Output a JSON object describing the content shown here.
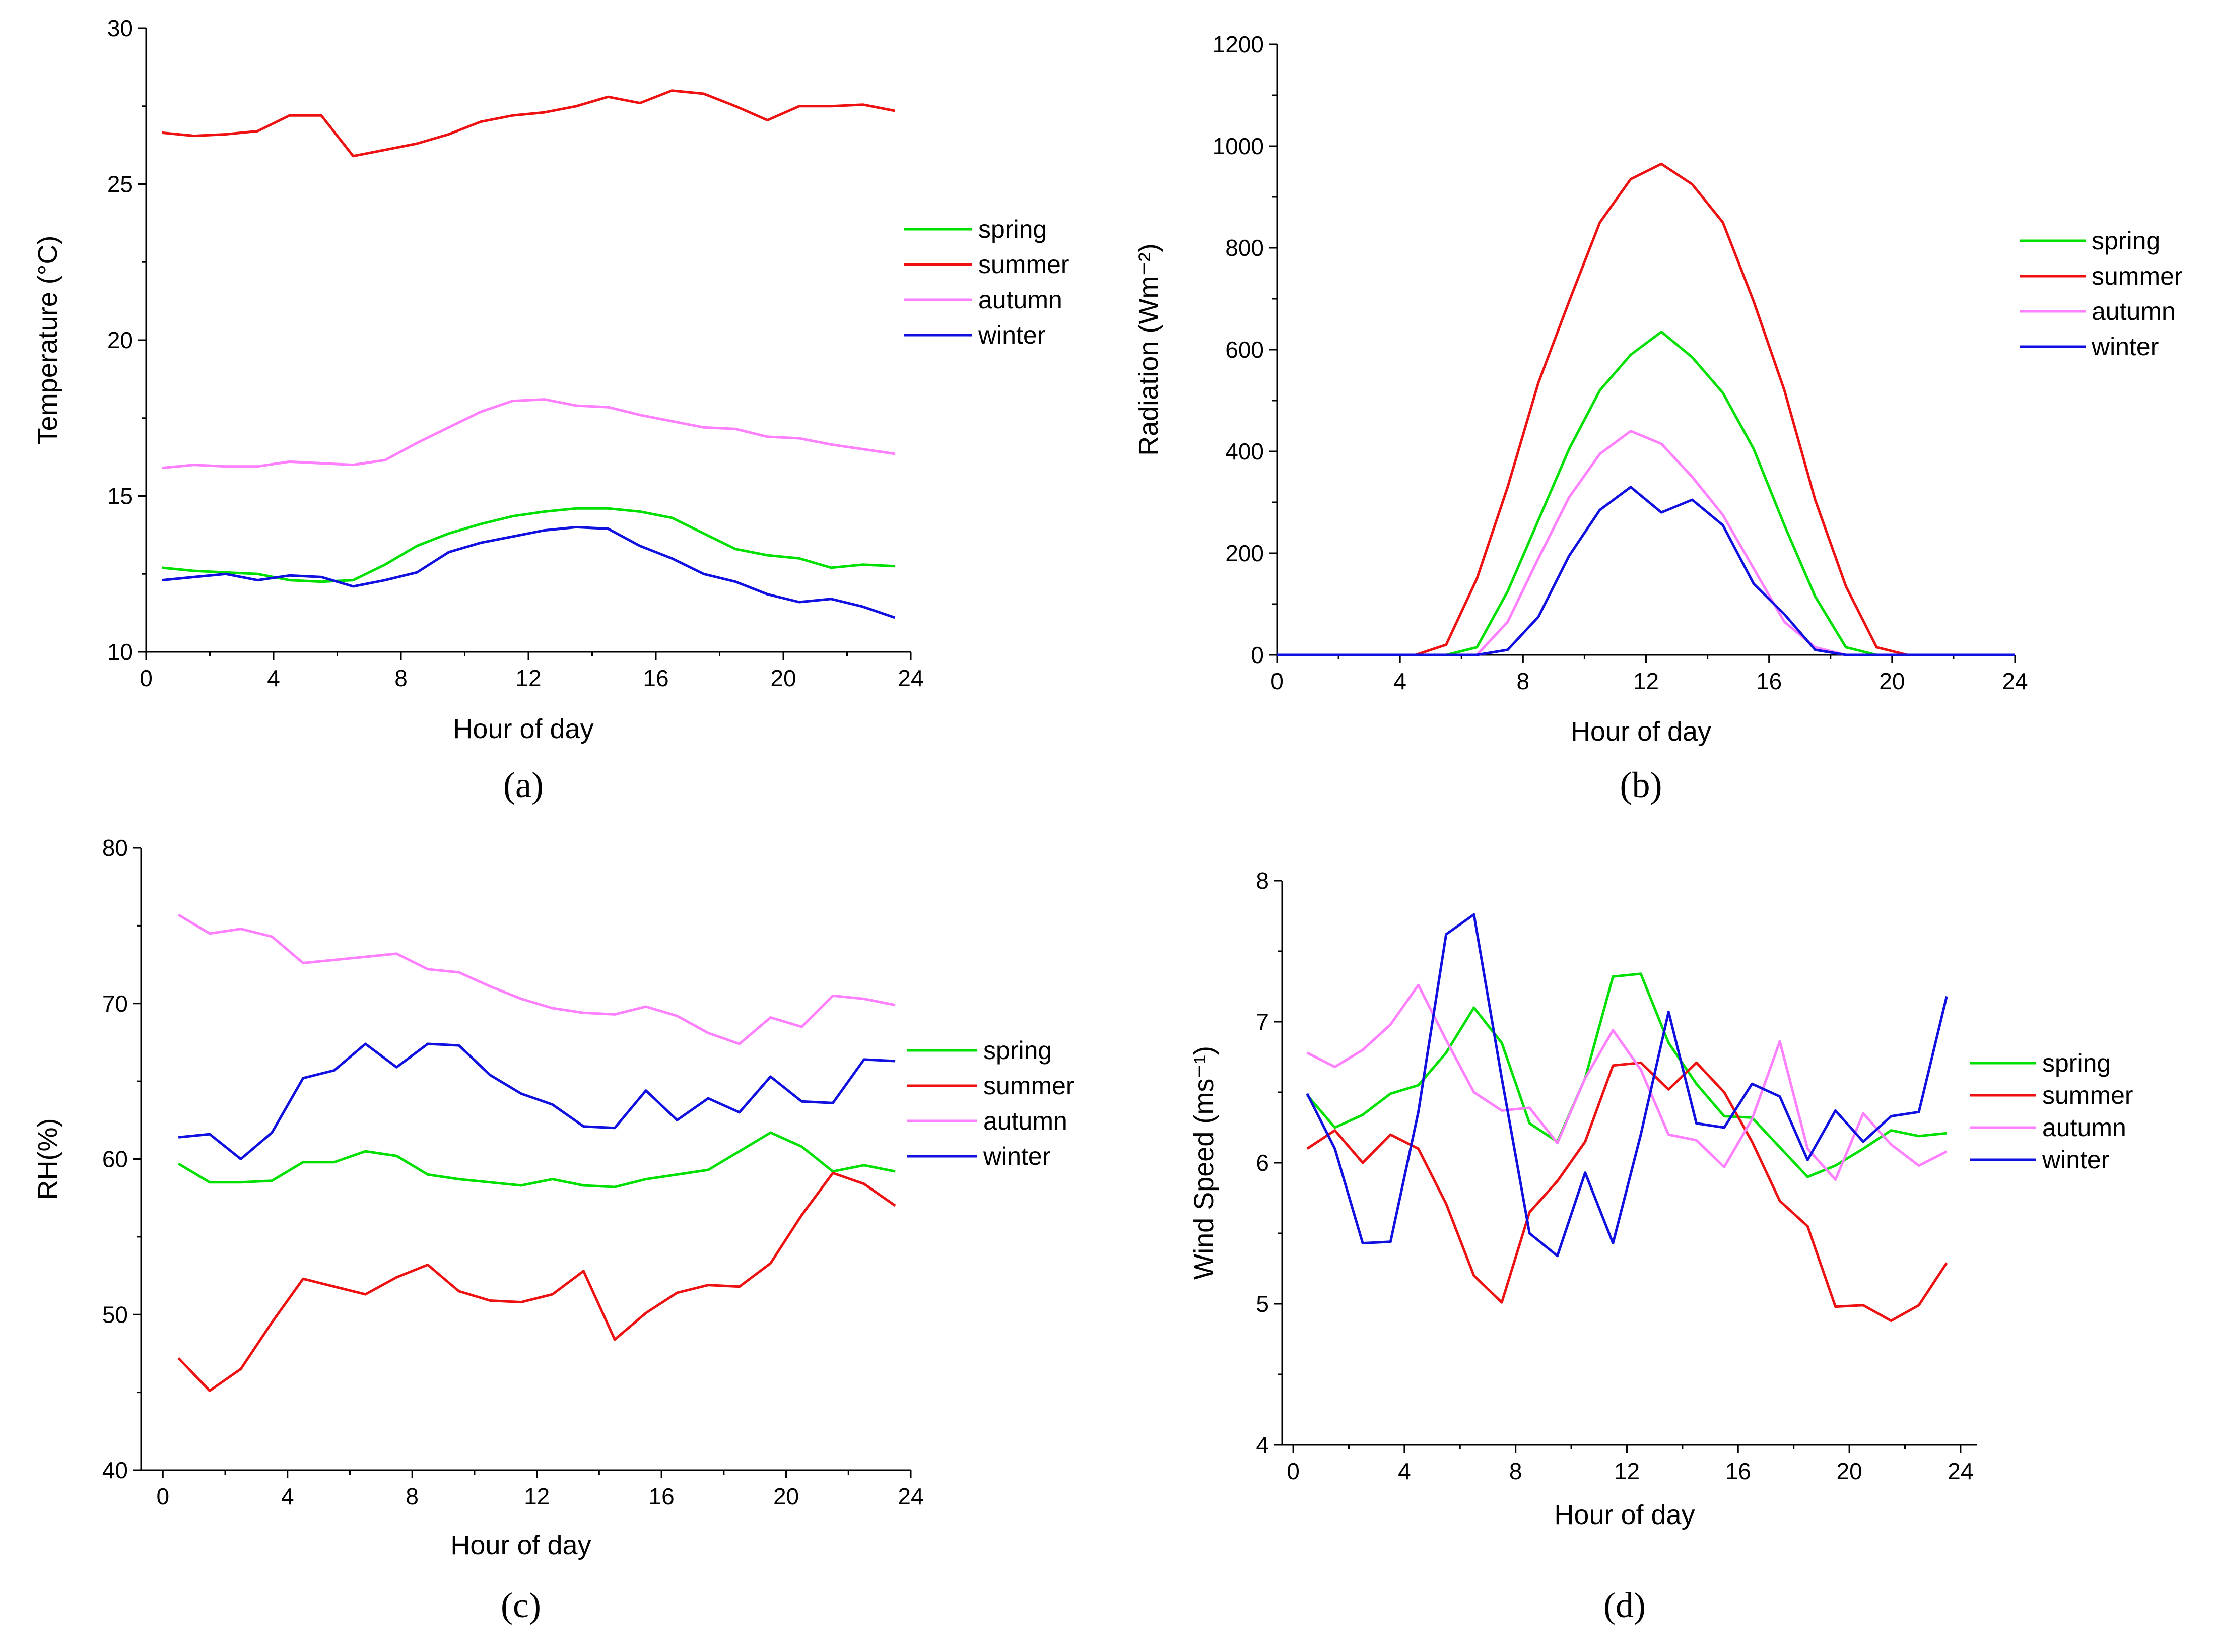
{
  "chart_data": [
    {
      "type": "line",
      "panel_label": "(a)",
      "xlabel": "Hour of day",
      "ylabel": "Temperature (°C)",
      "xlim": [
        0,
        24
      ],
      "ylim": [
        10,
        30
      ],
      "xticks": [
        "0",
        "4",
        "8",
        "12",
        "16",
        "20",
        "24"
      ],
      "yticks": [
        "10",
        "15",
        "20",
        "25",
        "30"
      ],
      "legend_position": "right",
      "x": [
        0.5,
        1.5,
        2.5,
        3.5,
        4.5,
        5.5,
        6.5,
        7.5,
        8.5,
        9.5,
        10.5,
        11.5,
        12.5,
        13.5,
        14.5,
        15.5,
        16.5,
        17.5,
        18.5,
        19.5,
        20.5,
        21.5,
        22.5,
        23.5
      ],
      "series": [
        {
          "name": "spring",
          "color": "#00e000",
          "values": [
            12.7,
            12.6,
            12.55,
            12.5,
            12.3,
            12.25,
            12.3,
            12.8,
            13.4,
            13.8,
            14.1,
            14.35,
            14.5,
            14.6,
            14.6,
            14.5,
            14.3,
            13.8,
            13.3,
            13.1,
            13.0,
            12.7,
            12.8,
            12.75
          ]
        },
        {
          "name": "summer",
          "color": "#ee1111",
          "values": [
            26.65,
            26.55,
            26.6,
            26.7,
            27.2,
            27.2,
            25.9,
            26.1,
            26.3,
            26.6,
            27.0,
            27.2,
            27.3,
            27.5,
            27.8,
            27.6,
            28.0,
            27.9,
            27.5,
            27.05,
            27.5,
            27.5,
            27.55,
            27.35
          ]
        },
        {
          "name": "autumn",
          "color": "#ff80ff",
          "values": [
            15.9,
            16.0,
            15.95,
            15.95,
            16.1,
            16.05,
            16.0,
            16.15,
            16.7,
            17.2,
            17.7,
            18.05,
            18.1,
            17.9,
            17.85,
            17.6,
            17.4,
            17.2,
            17.15,
            16.9,
            16.85,
            16.65,
            16.5,
            16.35
          ]
        },
        {
          "name": "winter",
          "color": "#1010e0",
          "values": [
            12.3,
            12.4,
            12.5,
            12.3,
            12.45,
            12.4,
            12.1,
            12.3,
            12.55,
            13.2,
            13.5,
            13.7,
            13.9,
            14.0,
            13.95,
            13.4,
            13.0,
            12.5,
            12.25,
            11.85,
            11.6,
            11.7,
            11.45,
            11.1
          ]
        }
      ]
    },
    {
      "type": "line",
      "panel_label": "(b)",
      "xlabel": "Hour of day",
      "ylabel": "Radiation (Wm⁻²)",
      "xlim": [
        0,
        24
      ],
      "ylim": [
        0,
        1200
      ],
      "xticks": [
        "0",
        "4",
        "8",
        "12",
        "16",
        "20",
        "24"
      ],
      "yticks": [
        "0",
        "200",
        "400",
        "600",
        "800",
        "1000",
        "1200"
      ],
      "legend_position": "right",
      "x": [
        0,
        1,
        2,
        3,
        4,
        4.5,
        5.5,
        6.5,
        7.5,
        8.5,
        9.5,
        10.5,
        11.5,
        12.5,
        13.5,
        14.5,
        15.5,
        16.5,
        17.5,
        18.5,
        19.5,
        20.5,
        21,
        22,
        23,
        24
      ],
      "series": [
        {
          "name": "spring",
          "color": "#00e000",
          "values": [
            0,
            0,
            0,
            0,
            0,
            0,
            0,
            15,
            125,
            265,
            405,
            520,
            590,
            635,
            585,
            515,
            405,
            255,
            115,
            15,
            0,
            0,
            0,
            0,
            0,
            0
          ]
        },
        {
          "name": "summer",
          "color": "#ee1111",
          "values": [
            0,
            0,
            0,
            0,
            0,
            0,
            20,
            150,
            330,
            535,
            695,
            850,
            935,
            965,
            925,
            850,
            695,
            520,
            305,
            135,
            15,
            0,
            0,
            0,
            0,
            0
          ]
        },
        {
          "name": "autumn",
          "color": "#ff80ff",
          "values": [
            0,
            0,
            0,
            0,
            0,
            0,
            0,
            0,
            65,
            190,
            310,
            395,
            440,
            415,
            350,
            275,
            170,
            65,
            15,
            0,
            0,
            0,
            0,
            0,
            0,
            0
          ]
        },
        {
          "name": "winter",
          "color": "#1010e0",
          "values": [
            0,
            0,
            0,
            0,
            0,
            0,
            0,
            0,
            10,
            75,
            195,
            285,
            330,
            280,
            305,
            255,
            140,
            80,
            10,
            0,
            0,
            0,
            0,
            0,
            0,
            0
          ]
        }
      ]
    },
    {
      "type": "line",
      "panel_label": "(c)",
      "xlabel": "Hour of day",
      "ylabel": "RH(%)",
      "xlim": [
        -0.7,
        24
      ],
      "ylim": [
        40,
        80
      ],
      "xticks": [
        "0",
        "4",
        "8",
        "12",
        "16",
        "20",
        "24"
      ],
      "yticks": [
        "40",
        "50",
        "60",
        "70",
        "80"
      ],
      "legend_position": "right",
      "x": [
        0.5,
        1.5,
        2.5,
        3.5,
        4.5,
        5.5,
        6.5,
        7.5,
        8.5,
        9.5,
        10.5,
        11.5,
        12.5,
        13.5,
        14.5,
        15.5,
        16.5,
        17.5,
        18.5,
        19.5,
        20.5,
        21.5,
        22.5,
        23.5
      ],
      "series": [
        {
          "name": "spring",
          "color": "#00e000",
          "values": [
            59.7,
            58.5,
            58.5,
            58.6,
            59.8,
            59.8,
            60.5,
            60.2,
            59.0,
            58.7,
            58.5,
            58.3,
            58.7,
            58.3,
            58.2,
            58.7,
            59.0,
            59.3,
            60.5,
            61.7,
            60.8,
            59.2,
            59.6,
            59.2
          ]
        },
        {
          "name": "summer",
          "color": "#ee1111",
          "values": [
            47.2,
            45.1,
            46.5,
            49.5,
            52.3,
            51.8,
            51.3,
            52.4,
            53.2,
            51.5,
            50.9,
            50.8,
            51.3,
            52.8,
            48.4,
            50.1,
            51.4,
            51.9,
            51.8,
            53.3,
            56.4,
            59.1,
            58.4,
            57.0
          ]
        },
        {
          "name": "autumn",
          "color": "#ff80ff",
          "values": [
            75.7,
            74.5,
            74.8,
            74.3,
            72.6,
            72.8,
            73.0,
            73.2,
            72.2,
            72.0,
            71.1,
            70.3,
            69.7,
            69.4,
            69.3,
            69.8,
            69.2,
            68.1,
            67.4,
            69.1,
            68.5,
            70.5,
            70.3,
            69.9
          ]
        },
        {
          "name": "winter",
          "color": "#1010e0",
          "values": [
            61.4,
            61.6,
            60.0,
            61.7,
            65.2,
            65.7,
            67.4,
            65.9,
            67.4,
            67.3,
            65.4,
            64.2,
            63.5,
            62.1,
            62.0,
            64.4,
            62.5,
            63.9,
            63.0,
            65.3,
            63.7,
            63.6,
            66.4,
            66.3
          ]
        }
      ]
    },
    {
      "type": "line",
      "panel_label": "(d)",
      "xlabel": "Hour of day",
      "ylabel": "Wind Speed (ms⁻¹)",
      "xlim": [
        -0.4,
        24.6
      ],
      "ylim": [
        4,
        8
      ],
      "xticks": [
        "0",
        "4",
        "8",
        "12",
        "16",
        "20",
        "24"
      ],
      "yticks": [
        "4",
        "5",
        "6",
        "7",
        "8"
      ],
      "legend_position": "right",
      "x": [
        0.5,
        1.5,
        2.5,
        3.5,
        4.5,
        5.5,
        6.5,
        7.5,
        8.5,
        9.5,
        10.5,
        11.5,
        12.5,
        13.5,
        14.5,
        15.5,
        16.5,
        17.5,
        18.5,
        19.5,
        20.5,
        21.5,
        22.5,
        23.5
      ],
      "series": [
        {
          "name": "spring",
          "color": "#00e000",
          "values": [
            6.48,
            6.25,
            6.34,
            6.49,
            6.55,
            6.78,
            7.1,
            6.85,
            6.28,
            6.15,
            6.6,
            7.32,
            7.34,
            6.85,
            6.56,
            6.33,
            6.32,
            6.11,
            5.9,
            5.98,
            6.1,
            6.23,
            6.19,
            6.21
          ]
        },
        {
          "name": "summer",
          "color": "#ee1111",
          "values": [
            6.1,
            6.23,
            6.0,
            6.2,
            6.1,
            5.71,
            5.2,
            5.01,
            5.65,
            5.87,
            6.15,
            6.69,
            6.71,
            6.52,
            6.71,
            6.5,
            6.15,
            5.73,
            5.55,
            4.98,
            4.99,
            4.88,
            4.99,
            5.29
          ]
        },
        {
          "name": "autumn",
          "color": "#ff80ff",
          "values": [
            6.78,
            6.68,
            6.8,
            6.98,
            7.26,
            6.87,
            6.5,
            6.37,
            6.39,
            6.14,
            6.6,
            6.94,
            6.66,
            6.2,
            6.16,
            5.97,
            6.31,
            6.86,
            6.1,
            5.88,
            6.35,
            6.13,
            5.98,
            6.08
          ]
        },
        {
          "name": "winter",
          "color": "#1010e0",
          "values": [
            6.49,
            6.1,
            5.43,
            5.44,
            6.36,
            7.62,
            7.76,
            6.6,
            5.5,
            5.34,
            5.93,
            5.43,
            6.2,
            7.07,
            6.28,
            6.25,
            6.56,
            6.47,
            6.02,
            6.37,
            6.15,
            6.33,
            6.36,
            7.18
          ]
        }
      ]
    }
  ]
}
